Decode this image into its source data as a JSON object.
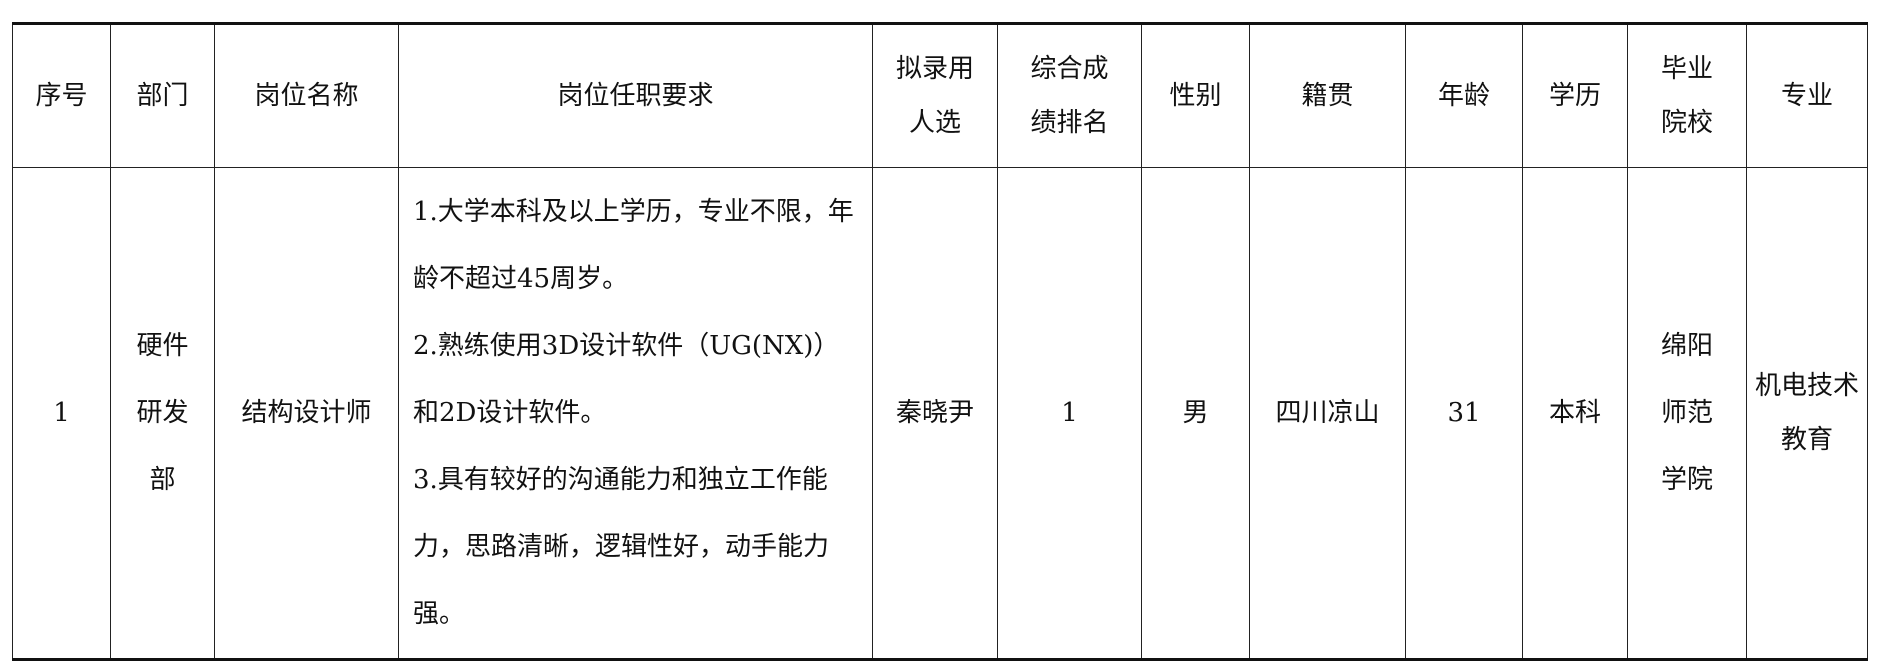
{
  "headers": [
    "序号",
    "部门",
    "岗位名称",
    "岗位任职要求",
    "拟录用人选",
    "综合成绩排名",
    "性别",
    "籍贯",
    "年龄",
    "学历",
    "毕业院校",
    "专业"
  ],
  "rows": [
    {
      "index": "1",
      "department": "硬件研发部",
      "position": "结构设计师",
      "requirements": [
        "1.大学本科及以上学历，专业不限，年龄不超过45周岁。",
        "2.熟练使用3D设计软件（UG(NX)）和2D设计软件。",
        "3.具有较好的沟通能力和独立工作能力，思路清晰，逻辑性好，动手能力强。"
      ],
      "candidate": "秦晓尹",
      "rank": "1",
      "gender": "男",
      "hometown": "四川凉山",
      "age": "31",
      "education": "本科",
      "school": "绵阳师范学院",
      "major": "机电技术教育"
    }
  ]
}
